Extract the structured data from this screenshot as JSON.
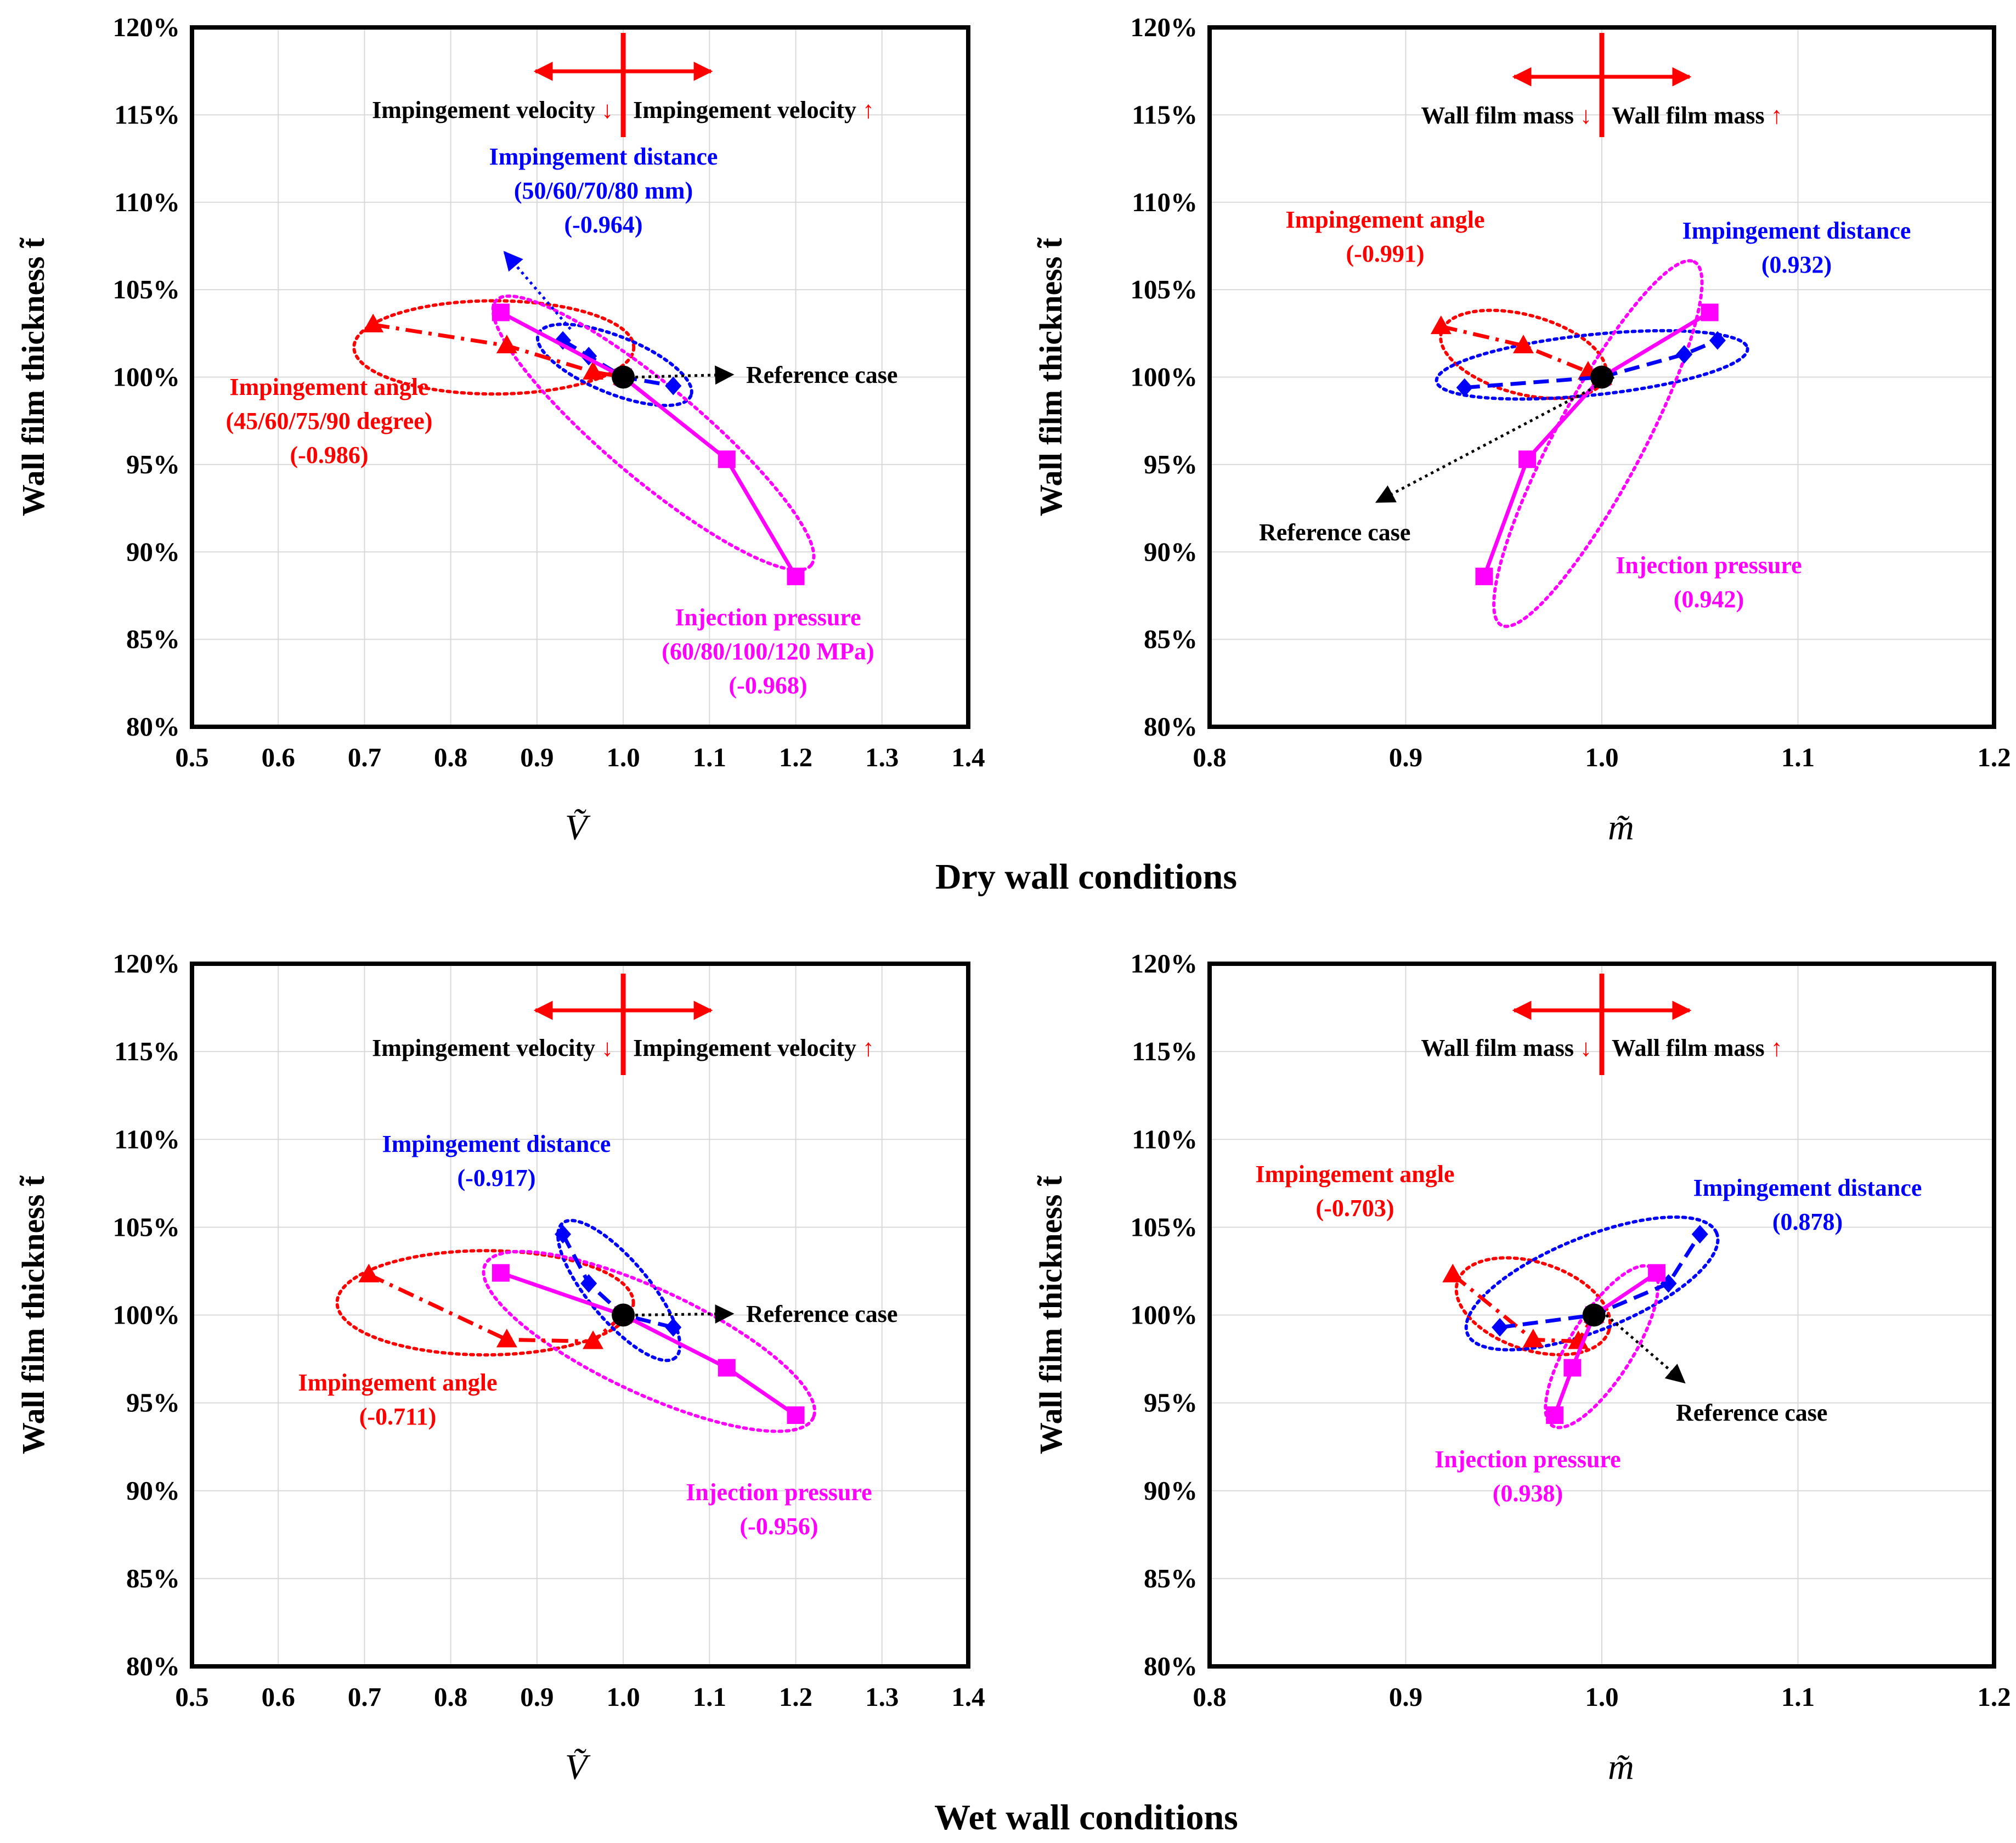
{
  "chart_data": [
    {
      "type": "line",
      "panel": "dry-velocity",
      "condition": "Dry wall conditions",
      "xlabel": "Ṽ",
      "ylabel": "Wall film thickness t̃",
      "xlim": [
        0.5,
        1.4
      ],
      "ylim": [
        0.8,
        1.2
      ],
      "xticks": [
        "0.5",
        "0.6",
        "0.7",
        "0.8",
        "0.9",
        "1.0",
        "1.1",
        "1.2",
        "1.3",
        "1.4"
      ],
      "yticks": [
        "80%",
        "85%",
        "90%",
        "95%",
        "100%",
        "105%",
        "110%",
        "115%",
        "120%"
      ],
      "arrow_left": "Impingement velocity",
      "arrow_right": "Impingement velocity",
      "arrow_down_glyph": "↓",
      "arrow_up_glyph": "↑",
      "reference": {
        "x": 1.0,
        "y": 1.0,
        "label": "Reference case"
      },
      "series": [
        {
          "name": "Impingement angle",
          "color": "#ff0000",
          "marker": "triangle",
          "dash": "dashdot",
          "x": [
            0.71,
            0.865,
            0.965,
            1.0
          ],
          "y": [
            1.03,
            1.018,
            1.003,
            1.0
          ],
          "label_lines": [
            "Impingement angle",
            "(45/60/75/90 degree)",
            "(-0.986)"
          ]
        },
        {
          "name": "Impingement distance",
          "color": "#0000ff",
          "marker": "diamond",
          "dash": "dash",
          "x": [
            0.93,
            0.96,
            1.0,
            1.058
          ],
          "y": [
            1.021,
            1.012,
            1.0,
            0.995
          ],
          "label_lines": [
            "Impingement distance",
            "(50/60/70/80 mm)",
            "(-0.964)"
          ]
        },
        {
          "name": "Injection pressure",
          "color": "#ff00ff",
          "marker": "square",
          "dash": "solid",
          "x": [
            0.858,
            1.0,
            1.12,
            1.2
          ],
          "y": [
            1.037,
            1.0,
            0.953,
            0.886
          ],
          "label_lines": [
            "Injection pressure",
            "(60/80/100/120 MPa)",
            "(-0.968)"
          ]
        }
      ]
    },
    {
      "type": "line",
      "panel": "dry-mass",
      "condition": "Dry wall conditions",
      "xlabel": "m̃",
      "ylabel": "Wall film thickness t̃",
      "xlim": [
        0.8,
        1.2
      ],
      "ylim": [
        0.8,
        1.2
      ],
      "xticks": [
        "0.8",
        "0.9",
        "1.0",
        "1.1",
        "1.2"
      ],
      "yticks": [
        "80%",
        "85%",
        "90%",
        "95%",
        "100%",
        "105%",
        "110%",
        "115%",
        "120%"
      ],
      "arrow_left": "Wall film mass",
      "arrow_right": "Wall film mass",
      "arrow_down_glyph": "↓",
      "arrow_up_glyph": "↑",
      "reference": {
        "x": 1.0,
        "y": 1.0,
        "label": "Reference case"
      },
      "series": [
        {
          "name": "Impingement angle",
          "color": "#ff0000",
          "marker": "triangle",
          "dash": "dashdot",
          "x": [
            0.918,
            0.96,
            0.993,
            1.0
          ],
          "y": [
            1.029,
            1.018,
            1.003,
            1.0
          ],
          "label_lines": [
            "Impingement angle",
            "(-0.991)"
          ]
        },
        {
          "name": "Impingement distance",
          "color": "#0000ff",
          "marker": "diamond",
          "dash": "dash",
          "x": [
            0.93,
            1.0,
            1.042,
            1.059
          ],
          "y": [
            0.994,
            1.0,
            1.013,
            1.021
          ],
          "label_lines": [
            "Impingement distance",
            "(0.932)"
          ]
        },
        {
          "name": "Injection pressure",
          "color": "#ff00ff",
          "marker": "square",
          "dash": "solid",
          "x": [
            0.94,
            0.962,
            1.0,
            1.055
          ],
          "y": [
            0.886,
            0.953,
            1.0,
            1.037
          ],
          "label_lines": [
            "Injection pressure",
            "(0.942)"
          ]
        }
      ]
    },
    {
      "type": "line",
      "panel": "wet-velocity",
      "condition": "Wet wall conditions",
      "xlabel": "Ṽ",
      "ylabel": "Wall film thickness t̃",
      "xlim": [
        0.5,
        1.4
      ],
      "ylim": [
        0.8,
        1.2
      ],
      "xticks": [
        "0.5",
        "0.6",
        "0.7",
        "0.8",
        "0.9",
        "1.0",
        "1.1",
        "1.2",
        "1.3",
        "1.4"
      ],
      "yticks": [
        "80%",
        "85%",
        "90%",
        "95%",
        "100%",
        "105%",
        "110%",
        "115%",
        "120%"
      ],
      "arrow_left": "Impingement velocity",
      "arrow_right": "Impingement velocity",
      "arrow_down_glyph": "↓",
      "arrow_up_glyph": "↑",
      "reference": {
        "x": 1.0,
        "y": 1.0,
        "label": "Reference case"
      },
      "series": [
        {
          "name": "Impingement angle",
          "color": "#ff0000",
          "marker": "triangle",
          "dash": "dashdot",
          "x": [
            0.705,
            0.865,
            0.965,
            1.0
          ],
          "y": [
            1.023,
            0.986,
            0.985,
            1.0
          ],
          "label_lines": [
            "Impingement angle",
            "(-0.711)"
          ]
        },
        {
          "name": "Impingement distance",
          "color": "#0000ff",
          "marker": "diamond",
          "dash": "dash",
          "x": [
            0.93,
            0.96,
            1.0,
            1.058
          ],
          "y": [
            1.046,
            1.018,
            1.0,
            0.993
          ],
          "label_lines": [
            "Impingement distance",
            "(-0.917)"
          ]
        },
        {
          "name": "Injection pressure",
          "color": "#ff00ff",
          "marker": "square",
          "dash": "solid",
          "x": [
            0.858,
            1.0,
            1.12,
            1.2
          ],
          "y": [
            1.024,
            1.0,
            0.97,
            0.943
          ],
          "label_lines": [
            "Injection pressure",
            "(-0.956)"
          ]
        }
      ]
    },
    {
      "type": "line",
      "panel": "wet-mass",
      "condition": "Wet wall conditions",
      "xlabel": "m̃",
      "ylabel": "Wall film thickness t̃",
      "xlim": [
        0.8,
        1.2
      ],
      "ylim": [
        0.8,
        1.2
      ],
      "xticks": [
        "0.8",
        "0.9",
        "1.0",
        "1.1",
        "1.2"
      ],
      "yticks": [
        "80%",
        "85%",
        "90%",
        "95%",
        "100%",
        "105%",
        "110%",
        "115%",
        "120%"
      ],
      "arrow_left": "Wall film mass",
      "arrow_right": "Wall film mass",
      "arrow_down_glyph": "↓",
      "arrow_up_glyph": "↑",
      "reference": {
        "x": 0.996,
        "y": 1.0,
        "label": "Reference case"
      },
      "series": [
        {
          "name": "Impingement angle",
          "color": "#ff0000",
          "marker": "triangle",
          "dash": "dashdot",
          "x": [
            0.924,
            0.965,
            0.988,
            0.996
          ],
          "y": [
            1.023,
            0.986,
            0.985,
            1.0
          ],
          "label_lines": [
            "Impingement angle",
            "(-0.703)"
          ]
        },
        {
          "name": "Impingement distance",
          "color": "#0000ff",
          "marker": "diamond",
          "dash": "dash",
          "x": [
            0.948,
            0.996,
            1.034,
            1.05
          ],
          "y": [
            0.993,
            1.0,
            1.018,
            1.046
          ],
          "label_lines": [
            "Impingement distance",
            "(0.878)"
          ]
        },
        {
          "name": "Injection pressure",
          "color": "#ff00ff",
          "marker": "square",
          "dash": "solid",
          "x": [
            0.976,
            0.985,
            0.996,
            1.028
          ],
          "y": [
            0.943,
            0.97,
            1.0,
            1.024
          ],
          "label_lines": [
            "Injection pressure",
            "(0.938)"
          ]
        }
      ]
    }
  ],
  "conditions": {
    "dry": "Dry wall conditions",
    "wet": "Wet wall conditions"
  }
}
